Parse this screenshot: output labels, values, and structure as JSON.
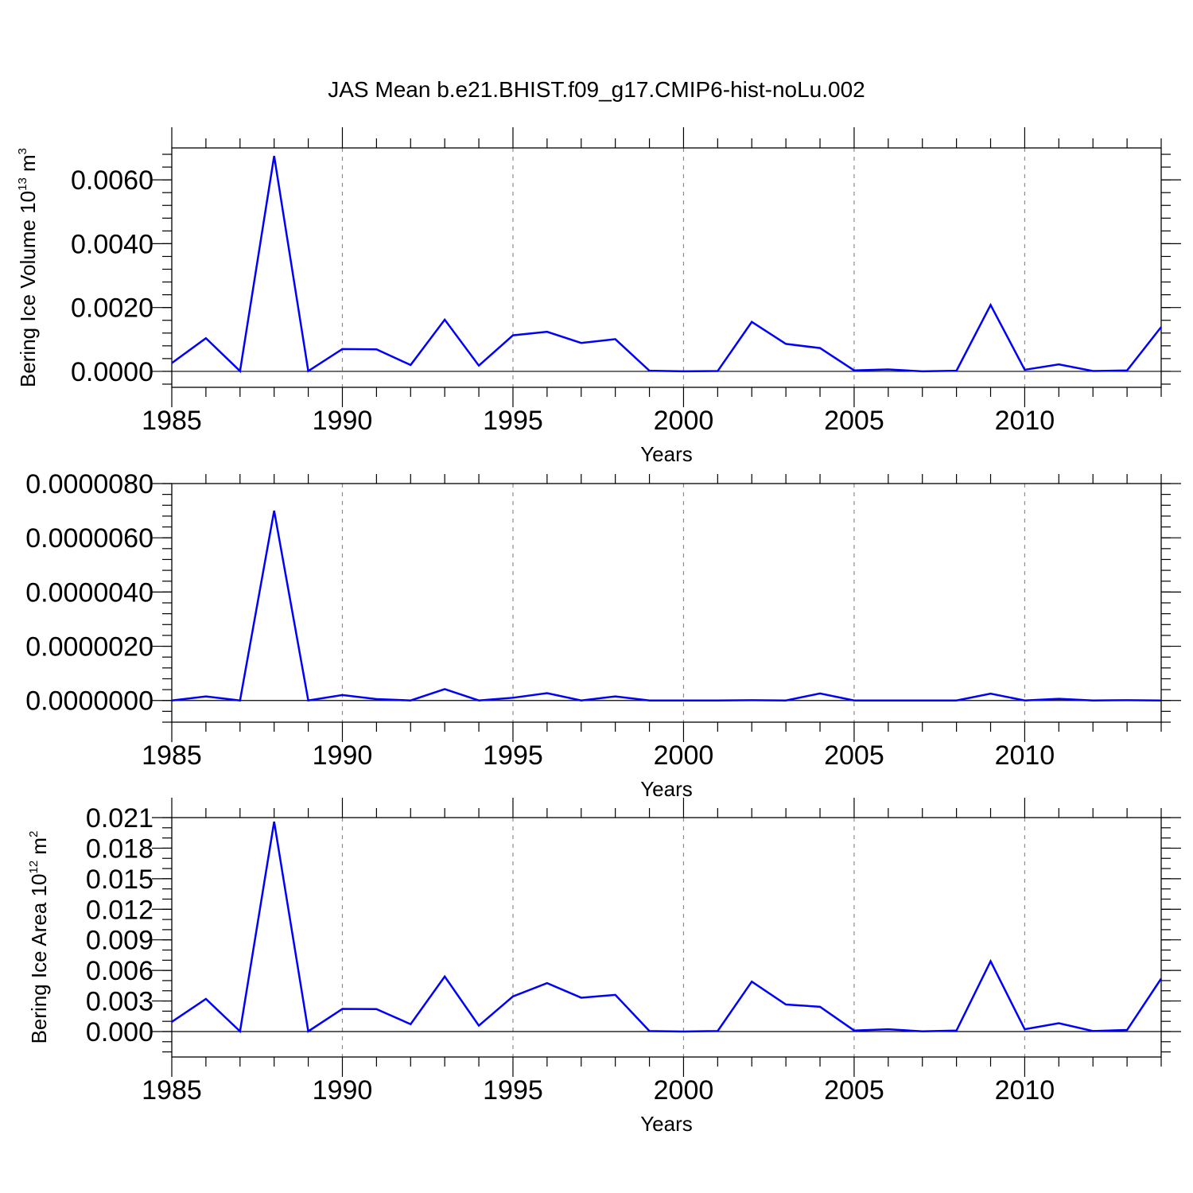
{
  "title": "JAS Mean b.e21.BHIST.f09_g17.CMIP6-hist-noLu.002",
  "colors": {
    "series": "#0000ff",
    "grid": "#8c8c8c",
    "axis": "#000000"
  },
  "chart_data": [
    {
      "type": "line",
      "title": "",
      "xlabel": "Years",
      "ylabel": "Bering Ice Volume 10",
      "ylabel_exponent": "13",
      "ylabel_unit": " m",
      "ylabel_unit_exponent": "3",
      "xlim": [
        1985,
        2014
      ],
      "ylim": [
        -0.0005,
        0.007
      ],
      "xticks": [
        "1985",
        "1990",
        "1995",
        "2000",
        "2005",
        "2010"
      ],
      "yticks": [
        "0.0000",
        "0.0020",
        "0.0040",
        "0.0060"
      ],
      "x_minor_step": 1,
      "y_minor_step": 0.0004,
      "grid": "vertical dashed",
      "x": [
        1985,
        1986,
        1987,
        1988,
        1989,
        1990,
        1991,
        1992,
        1993,
        1994,
        1995,
        1996,
        1997,
        1998,
        1999,
        2000,
        2001,
        2002,
        2003,
        2004,
        2005,
        2006,
        2007,
        2008,
        2009,
        2010,
        2011,
        2012,
        2013,
        2014
      ],
      "series": [
        {
          "values": [
            0.00026,
            0.00104,
            1e-05,
            0.00675,
            1e-05,
            0.0007,
            0.00069,
            0.0002,
            0.00162,
            0.00018,
            0.00113,
            0.00124,
            0.00089,
            0.00101,
            2e-05,
            0.0,
            1e-05,
            0.00155,
            0.00086,
            0.00073,
            3e-05,
            6e-05,
            0.0,
            2e-05,
            0.00208,
            5e-05,
            0.00022,
            1e-05,
            3e-05,
            0.00139
          ]
        }
      ]
    },
    {
      "type": "line",
      "title": "",
      "xlabel": "Years",
      "ylabel": "",
      "xlim": [
        1985,
        2014
      ],
      "ylim": [
        -8e-07,
        8e-06
      ],
      "xticks": [
        "1985",
        "1990",
        "1995",
        "2000",
        "2005",
        "2010"
      ],
      "yticks": [
        "0.0000000",
        "0.0000020",
        "0.0000040",
        "0.0000060",
        "0.0000080"
      ],
      "x_minor_step": 1,
      "y_minor_step": 4e-07,
      "grid": "vertical dashed",
      "x": [
        1985,
        1986,
        1987,
        1988,
        1989,
        1990,
        1991,
        1992,
        1993,
        1994,
        1995,
        1996,
        1997,
        1998,
        1999,
        2000,
        2001,
        2002,
        2003,
        2004,
        2005,
        2006,
        2007,
        2008,
        2009,
        2010,
        2011,
        2012,
        2013,
        2014
      ],
      "series": [
        {
          "values": [
            0.0,
            1.5e-07,
            0.0,
            7e-06,
            0.0,
            2e-07,
            5e-08,
            0.0,
            4.2e-07,
            0.0,
            1e-07,
            2.7e-07,
            0.0,
            1.5e-07,
            0.0,
            0.0,
            0.0,
            1e-08,
            0.0,
            2.6e-07,
            0.0,
            0.0,
            0.0,
            0.0,
            2.5e-07,
            0.0,
            6e-08,
            0.0,
            1e-08,
            0.0
          ]
        }
      ]
    },
    {
      "type": "line",
      "title": "",
      "xlabel": "Years",
      "ylabel": "Bering Ice Area 10",
      "ylabel_exponent": "12",
      "ylabel_unit": " m",
      "ylabel_unit_exponent": "2",
      "xlim": [
        1985,
        2014
      ],
      "ylim": [
        -0.0025,
        0.021
      ],
      "xticks": [
        "1985",
        "1990",
        "1995",
        "2000",
        "2005",
        "2010"
      ],
      "yticks": [
        "0.000",
        "0.003",
        "0.006",
        "0.009",
        "0.012",
        "0.015",
        "0.018",
        "0.021"
      ],
      "x_minor_step": 1,
      "y_minor_step": 0.001,
      "grid": "vertical dashed",
      "x": [
        1985,
        1986,
        1987,
        1988,
        1989,
        1990,
        1991,
        1992,
        1993,
        1994,
        1995,
        1996,
        1997,
        1998,
        1999,
        2000,
        2001,
        2002,
        2003,
        2004,
        2005,
        2006,
        2007,
        2008,
        2009,
        2010,
        2011,
        2012,
        2013,
        2014
      ],
      "series": [
        {
          "values": [
            0.00095,
            0.0032,
            2e-05,
            0.0206,
            2e-05,
            0.00222,
            0.0022,
            0.00072,
            0.0054,
            0.00058,
            0.00345,
            0.00475,
            0.00332,
            0.0036,
            5e-05,
            0.0,
            5e-05,
            0.0049,
            0.00265,
            0.00243,
            0.0001,
            0.00022,
            2e-05,
            0.0001,
            0.0069,
            0.00022,
            0.00082,
            5e-05,
            0.00015,
            0.0052
          ]
        }
      ]
    }
  ]
}
